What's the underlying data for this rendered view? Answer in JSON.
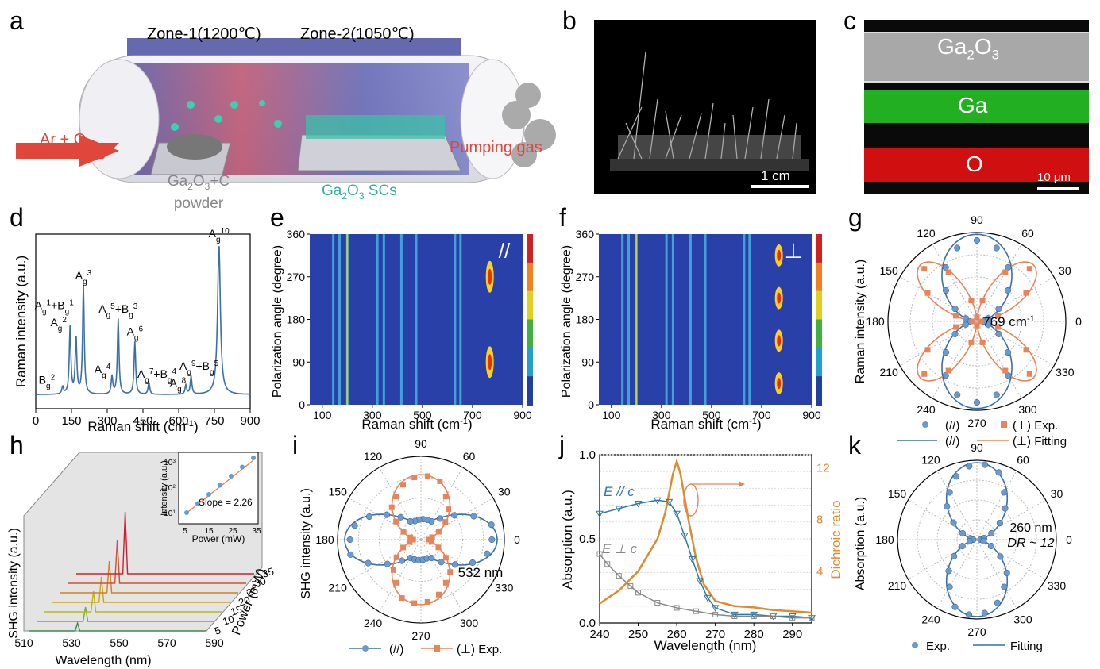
{
  "panels": {
    "a": {
      "letter": "a",
      "zone1": "Zone-1(1200℃)",
      "zone2": "Zone-2(1050℃)",
      "gas_in": "Ar + O",
      "gas_in_sub": "2",
      "pumping": "Pumping gas",
      "source_line1_pre": "Ga",
      "source_sub1": "2",
      "source_mid": "O",
      "source_sub2": "3",
      "source_post": "+C",
      "source_line2": "powder",
      "product_pre": "Ga",
      "product_sub1": "2",
      "product_mid": "O",
      "product_sub2": "3",
      "product_post": " SCs"
    },
    "b": {
      "letter": "b",
      "scale": "1 cm"
    },
    "c": {
      "letter": "c",
      "layer1_pre": "Ga",
      "layer1_sub1": "2",
      "layer1_mid": "O",
      "layer1_sub2": "3",
      "layer2": "Ga",
      "layer3": "O",
      "scale": "10 μm",
      "colors": {
        "ga": "#22b022",
        "o": "#d01010",
        "sem": "#a8a8a8"
      }
    },
    "d": {
      "letter": "d",
      "ylabel": "Raman intensity (a.u.)",
      "xlabel_pre": "Raman shift (cm",
      "xlabel_sup": "-1",
      "xlabel_post": ")",
      "xticks": [
        "0",
        "150",
        "300",
        "450",
        "600",
        "750",
        "900"
      ],
      "peak_labels": [
        "B",
        "A",
        "A",
        "A",
        "A+B",
        "A",
        "A",
        "A+B",
        "A",
        "A+B",
        "A"
      ],
      "peak_sub": [
        "g",
        "g",
        "g",
        "g",
        "g",
        "g",
        "g",
        "g",
        "g",
        "g",
        "g"
      ],
      "peak_sup": [
        "2",
        "1",
        "1",
        "2",
        "3",
        "5",
        "3",
        "4",
        "6",
        "7",
        "4",
        "8",
        "9",
        "5",
        "10"
      ],
      "peaks": [
        {
          "label": "B_g^2"
        },
        {
          "label": "A_g^1+B_g^1"
        },
        {
          "label": "A_g^2"
        },
        {
          "label": "A_g^3"
        },
        {
          "label": "A_g^4"
        },
        {
          "label": "A_g^5+B_g^3"
        },
        {
          "label": "A_g^6"
        },
        {
          "label": "A_g^7+B_g^4"
        },
        {
          "label": "A_g^8"
        },
        {
          "label": "A_g^9+B_g^5"
        },
        {
          "label": "A_g^10"
        }
      ]
    },
    "e": {
      "letter": "e",
      "ylabel": "Polarization angle (degree)",
      "xlabel_pre": "Raman shift (cm",
      "xlabel_sup": "-1",
      "xlabel_post": ")",
      "xticks": [
        "100",
        "300",
        "500",
        "700",
        "900"
      ],
      "yticks": [
        "0",
        "90",
        "180",
        "270",
        "360"
      ],
      "symbol": "//"
    },
    "f": {
      "letter": "f",
      "ylabel": "Polarization angle (degree)",
      "xlabel_pre": "Raman shift (cm",
      "xlabel_sup": "-1",
      "xlabel_post": ")",
      "xticks": [
        "100",
        "300",
        "500",
        "700",
        "900"
      ],
      "yticks": [
        "0",
        "90",
        "180",
        "270",
        "360"
      ],
      "symbol": "⊥"
    },
    "g": {
      "letter": "g",
      "ylabel": "Raman intensity (a.u.)",
      "angles": [
        "0",
        "30",
        "60",
        "90",
        "120",
        "150",
        "180",
        "210",
        "240",
        "270",
        "300",
        "330"
      ],
      "annotation_pre": "769 cm",
      "annotation_sup": "-1",
      "legend": [
        "(//)",
        "(⊥) Exp.",
        "(//)",
        "(⊥) Fitting"
      ]
    },
    "h": {
      "letter": "h",
      "ylabel": "SHG intensity (a.u.)",
      "xlabel": "Wavelength (nm)",
      "zlabel": "Power (mW)",
      "xticks": [
        "510",
        "530",
        "550",
        "570",
        "590"
      ],
      "zticks": [
        "5",
        "10",
        "15",
        "20",
        "25",
        "30",
        "35"
      ],
      "inset_ylabel": "Intensity (a.u.)",
      "inset_xlabel": "Power (mW)",
      "inset_xticks": [
        "5",
        "15",
        "25",
        "35"
      ],
      "inset_yticks": [
        "10",
        "10",
        "10"
      ],
      "inset_ysup": [
        "1",
        "2",
        "3"
      ],
      "slope": "Slope = 2.26"
    },
    "i": {
      "letter": "i",
      "ylabel": "SHG intensity (a.u.)",
      "angles": [
        "0",
        "30",
        "60",
        "90",
        "120",
        "150",
        "180",
        "210",
        "240",
        "270",
        "300",
        "330"
      ],
      "annotation": "532 nm",
      "legend": [
        "(//)",
        "(⊥) Exp."
      ]
    },
    "j": {
      "letter": "j",
      "ylabel": "Absorption (a.u.)",
      "y2label": "Dichroic ratio",
      "xlabel": "Wavelength (nm)",
      "xticks": [
        "240",
        "250",
        "260",
        "270",
        "280",
        "290"
      ],
      "yticks": [
        "0.0",
        "0.5",
        "1.0"
      ],
      "y2ticks": [
        "4",
        "8",
        "12"
      ],
      "label_par": "E // c",
      "label_perp": "E ⊥ c"
    },
    "k": {
      "letter": "k",
      "ylabel": "Absorption (a.u.)",
      "angles": [
        "0",
        "30",
        "60",
        "90",
        "120",
        "150",
        "180",
        "210",
        "240",
        "270",
        "300",
        "330"
      ],
      "annotation1": "260 nm",
      "annotation2": "DR ~ 12",
      "legend": [
        "Exp.",
        "Fitting"
      ]
    }
  },
  "colors": {
    "blue": "#3a6fa8",
    "orange": "#e8845a",
    "dark_orange": "#e08a30",
    "gray": "#888888"
  },
  "chart_data": [
    {
      "panel": "d",
      "type": "line",
      "xlabel": "Raman shift (cm-1)",
      "ylabel": "Raman intensity (a.u.)",
      "xlim": [
        0,
        900
      ],
      "peaks_x": [
        113,
        144,
        169,
        200,
        320,
        346,
        416,
        475,
        630,
        652,
        769
      ],
      "peaks_rel": [
        0.05,
        0.45,
        0.38,
        0.72,
        0.12,
        0.5,
        0.35,
        0.08,
        0.06,
        0.12,
        1.0
      ]
    },
    {
      "panel": "g",
      "type": "polar",
      "series": [
        {
          "name": "(//)",
          "shape": "cos2"
        },
        {
          "name": "(⊥)",
          "shape": "sin2x2"
        }
      ]
    },
    {
      "panel": "h",
      "type": "line",
      "xlim": [
        510,
        590
      ],
      "power": [
        5,
        10,
        15,
        20,
        25,
        30,
        35
      ],
      "inset_slope": 2.26
    },
    {
      "panel": "j",
      "type": "line",
      "xlim": [
        240,
        295
      ],
      "ylim": [
        0,
        1.0
      ],
      "y2lim": [
        0,
        13
      ],
      "series": [
        {
          "name": "E//c",
          "x": [
            240,
            245,
            250,
            255,
            258,
            260,
            262,
            264,
            266,
            268,
            270,
            275,
            280,
            285,
            290,
            295
          ],
          "y": [
            0.65,
            0.68,
            0.71,
            0.73,
            0.72,
            0.65,
            0.52,
            0.38,
            0.25,
            0.15,
            0.09,
            0.05,
            0.05,
            0.04,
            0.04,
            0.03
          ]
        },
        {
          "name": "E⊥c",
          "x": [
            240,
            242,
            245,
            248,
            250,
            255,
            260,
            265,
            270,
            275,
            280,
            285,
            290,
            295
          ],
          "y": [
            0.41,
            0.35,
            0.28,
            0.22,
            0.18,
            0.12,
            0.09,
            0.07,
            0.05,
            0.04,
            0.04,
            0.04,
            0.03,
            0.03
          ]
        },
        {
          "name": "Dichroic ratio",
          "x": [
            240,
            245,
            250,
            253,
            255,
            257,
            259,
            260,
            261,
            263,
            265,
            267,
            270,
            275,
            280,
            285,
            290,
            295
          ],
          "y": [
            1.5,
            2.5,
            4.0,
            5.5,
            6.5,
            8.5,
            11.5,
            12.5,
            11.5,
            8.0,
            5.0,
            3.0,
            1.7,
            1.3,
            1.2,
            1.0,
            0.9,
            0.8
          ]
        }
      ]
    }
  ]
}
